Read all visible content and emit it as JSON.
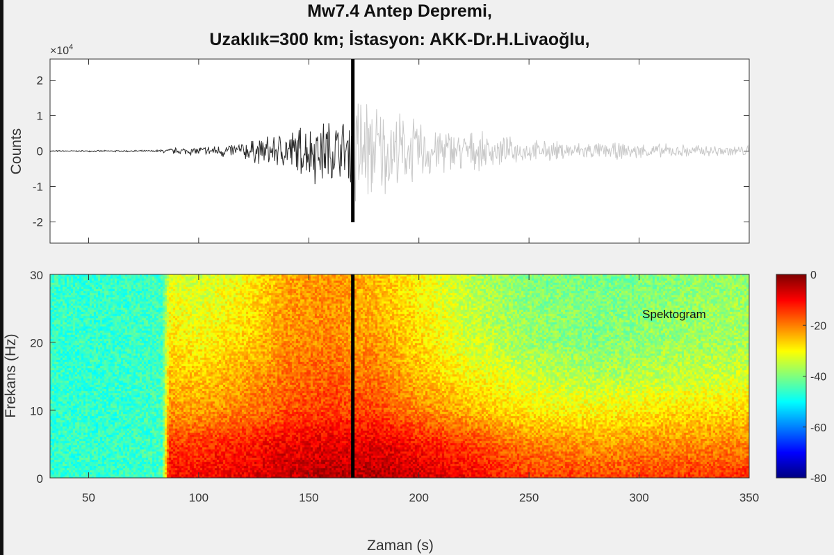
{
  "chart_data": [
    {
      "type": "line",
      "title_line1": "Mw7.4 Antep Depremi,",
      "title_line2": "Uzaklık=300 km; İstasyon: AKK-Dr.H.Livaoğlu,",
      "ylabel": "Counts",
      "y_multiplier": "×10",
      "y_multiplier_exp": "4",
      "xlim": [
        32.5,
        350
      ],
      "ylim": [
        -2.6,
        2.6
      ],
      "yticks": [
        "2",
        "1",
        "0",
        "-1",
        "-2"
      ],
      "ytick_values": [
        2,
        1,
        0,
        -1,
        -2
      ],
      "xtick_values": [
        50,
        100,
        150,
        200,
        250,
        300,
        350
      ],
      "marker_time": 170,
      "series": [
        {
          "color": "#2a2a2a",
          "t_range": [
            32.5,
            170
          ]
        },
        {
          "color": "#c8c8c8",
          "t_range": [
            170,
            350
          ]
        }
      ],
      "envelope": {
        "t": [
          32.5,
          80,
          88,
          100,
          115,
          130,
          145,
          155,
          168,
          171,
          180,
          195,
          210,
          230,
          250,
          280,
          320,
          350
        ],
        "amplitude_x1e4": [
          0.02,
          0.03,
          0.1,
          0.15,
          0.25,
          0.45,
          0.8,
          1.1,
          1.0,
          2.3,
          1.6,
          1.1,
          0.8,
          0.55,
          0.35,
          0.28,
          0.22,
          0.18
        ]
      }
    },
    {
      "type": "heatmap",
      "label": "Spektogram",
      "xlabel": "Zaman (s)",
      "ylabel": "Frekans (Hz)",
      "xlim": [
        32.5,
        350
      ],
      "ylim": [
        0,
        30
      ],
      "xticks": [
        "50",
        "100",
        "150",
        "200",
        "250",
        "300",
        "350"
      ],
      "xtick_values": [
        50,
        100,
        150,
        200,
        250,
        300,
        350
      ],
      "yticks": [
        "30",
        "20",
        "10",
        "0"
      ],
      "ytick_values": [
        30,
        20,
        10,
        0
      ],
      "marker_time": 170,
      "colormap": "jet",
      "clim": [
        -80,
        0
      ],
      "colorbar_ticks": [
        "0",
        "-20",
        "-40",
        "-60",
        "-80"
      ],
      "colorbar_tick_values": [
        0,
        -20,
        -40,
        -60,
        -80
      ],
      "times": [
        32.5,
        60,
        83,
        86,
        100,
        120,
        140,
        160,
        170,
        180,
        200,
        220,
        250,
        280,
        310,
        350
      ],
      "freqs": [
        0,
        5,
        10,
        15,
        20,
        25,
        30
      ],
      "db": [
        [
          -46,
          -46,
          -45,
          -10,
          -10,
          -8,
          -5,
          -4,
          -4,
          -4,
          -6,
          -9,
          -14,
          -15,
          -14,
          -13
        ],
        [
          -46,
          -46,
          -45,
          -14,
          -14,
          -12,
          -9,
          -8,
          -9,
          -8,
          -11,
          -14,
          -20,
          -22,
          -21,
          -20
        ],
        [
          -46,
          -46,
          -45,
          -22,
          -22,
          -20,
          -16,
          -14,
          -15,
          -15,
          -20,
          -24,
          -29,
          -30,
          -28,
          -27
        ],
        [
          -46,
          -46,
          -45,
          -25,
          -26,
          -23,
          -19,
          -17,
          -19,
          -19,
          -25,
          -29,
          -34,
          -36,
          -35,
          -33
        ],
        [
          -46,
          -46,
          -45,
          -28,
          -30,
          -27,
          -21,
          -20,
          -22,
          -22,
          -27,
          -33,
          -38,
          -40,
          -38,
          -37
        ],
        [
          -46,
          -46,
          -45,
          -30,
          -32,
          -29,
          -22,
          -21,
          -23,
          -24,
          -29,
          -34,
          -39,
          -40,
          -39,
          -37
        ],
        [
          -46,
          -46,
          -45,
          -32,
          -34,
          -30,
          -23,
          -22,
          -23,
          -25,
          -30,
          -35,
          -40,
          -41,
          -40,
          -38
        ]
      ]
    }
  ]
}
